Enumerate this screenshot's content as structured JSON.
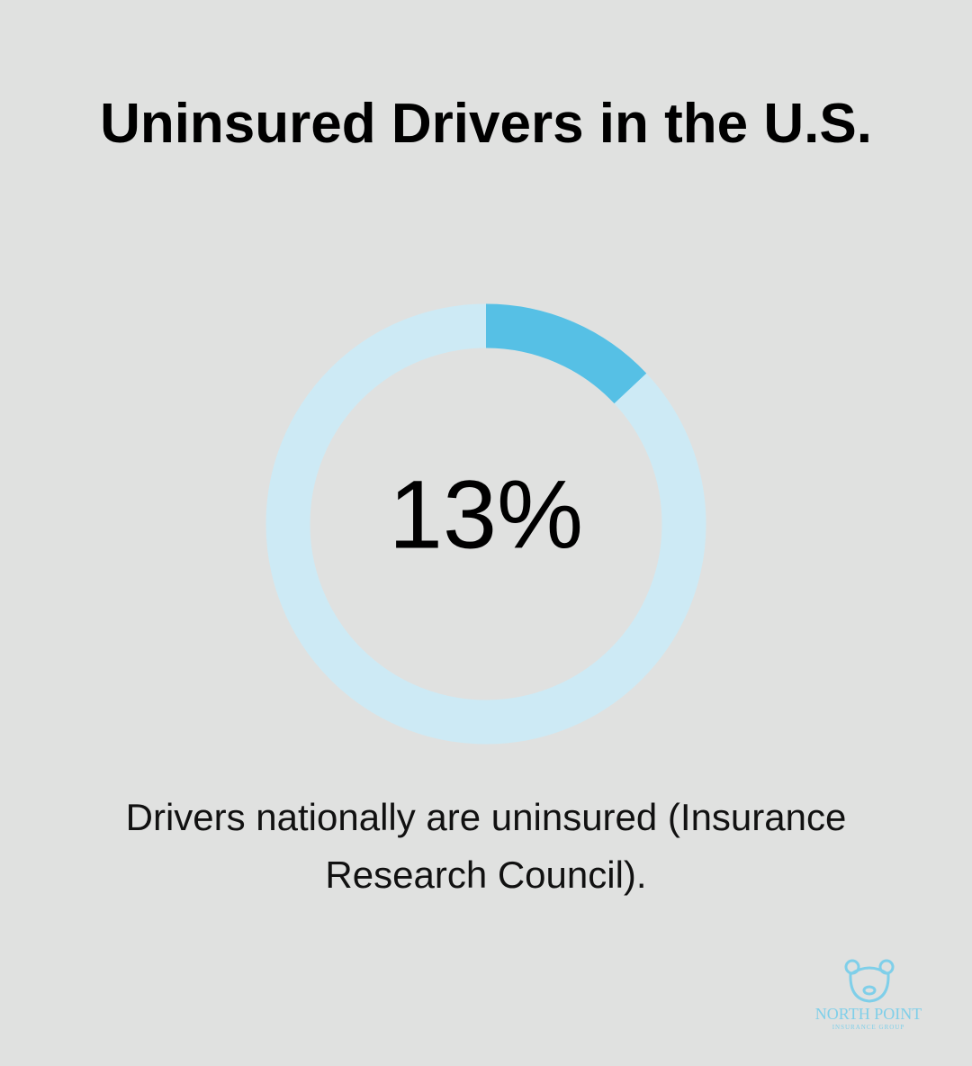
{
  "chart_data": {
    "type": "donut",
    "title": "Uninsured Drivers in the U.S.",
    "values": [
      13
    ],
    "value_labels": [
      "13%"
    ],
    "ylim": [
      0,
      100
    ],
    "color": "#56c0e5",
    "track_color": "#cdeaf5",
    "caption": "Drivers nationally are uninsured (Insurance Research Council)."
  },
  "logo": {
    "name": "NORTH POINT",
    "tagline": "INSURANCE GROUP"
  }
}
